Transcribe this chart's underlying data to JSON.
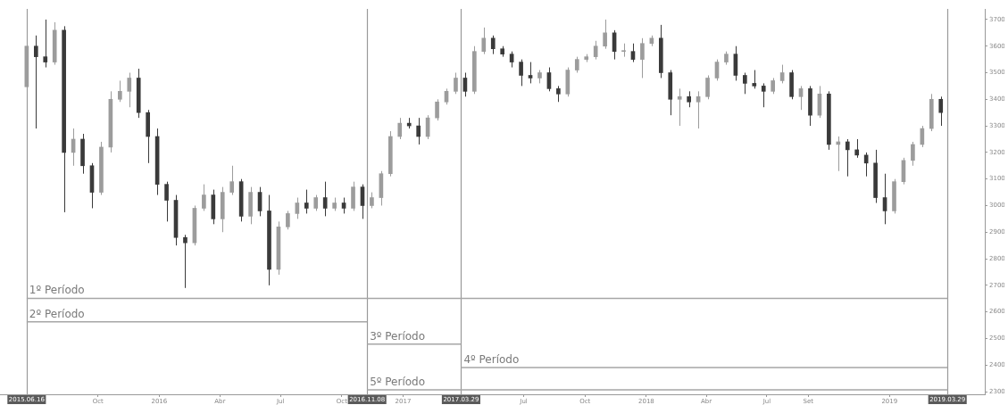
{
  "chart_data": {
    "type": "candlestick",
    "x": [
      "2015-06-16",
      "2015-06-30",
      "2015-07-14",
      "2015-07-28",
      "2015-08-11",
      "2015-08-25",
      "2015-09-08",
      "2015-09-22",
      "2015-10-06",
      "2015-10-20",
      "2015-11-03",
      "2015-11-17",
      "2015-12-01",
      "2015-12-15",
      "2015-12-29",
      "2016-01-12",
      "2016-01-26",
      "2016-02-09",
      "2016-02-23",
      "2016-03-08",
      "2016-03-22",
      "2016-04-05",
      "2016-04-19",
      "2016-05-03",
      "2016-05-17",
      "2016-05-31",
      "2016-06-14",
      "2016-06-28",
      "2016-07-12",
      "2016-07-26",
      "2016-08-09",
      "2016-08-23",
      "2016-09-06",
      "2016-09-20",
      "2016-10-04",
      "2016-10-18",
      "2016-11-01",
      "2016-11-15",
      "2016-11-29",
      "2016-12-13",
      "2016-12-27",
      "2017-01-10",
      "2017-01-24",
      "2017-02-07",
      "2017-02-21",
      "2017-03-07",
      "2017-03-21",
      "2017-04-04",
      "2017-04-18",
      "2017-05-02",
      "2017-05-16",
      "2017-05-30",
      "2017-06-13",
      "2017-06-27",
      "2017-07-11",
      "2017-07-25",
      "2017-08-08",
      "2017-08-22",
      "2017-09-05",
      "2017-09-19",
      "2017-10-03",
      "2017-10-17",
      "2017-10-31",
      "2017-11-14",
      "2017-11-28",
      "2017-12-12",
      "2017-12-26",
      "2018-01-09",
      "2018-01-23",
      "2018-02-06",
      "2018-02-20",
      "2018-03-06",
      "2018-03-20",
      "2018-04-03",
      "2018-04-17",
      "2018-05-01",
      "2018-05-15",
      "2018-05-29",
      "2018-06-12",
      "2018-06-26",
      "2018-07-10",
      "2018-07-24",
      "2018-08-07",
      "2018-08-21",
      "2018-09-04",
      "2018-09-18",
      "2018-10-02",
      "2018-10-16",
      "2018-10-30",
      "2018-11-13",
      "2018-11-27",
      "2018-12-11",
      "2018-12-25",
      "2019-01-08",
      "2019-01-22",
      "2019-02-05",
      "2019-02-19",
      "2019-03-05",
      "2019-03-19"
    ],
    "series": [
      {
        "colors": [
          "#9c9c9c",
          "#3a3a3a",
          "#3a3a3a",
          "#9c9c9c",
          "#3a3a3a",
          "#9c9c9c",
          "#3a3a3a",
          "#3a3a3a",
          "#9c9c9c",
          "#9c9c9c",
          "#9c9c9c",
          "#9c9c9c",
          "#3a3a3a",
          "#3a3a3a",
          "#3a3a3a",
          "#3a3a3a",
          "#3a3a3a",
          "#3a3a3a",
          "#9c9c9c",
          "#9c9c9c",
          "#3a3a3a",
          "#9c9c9c",
          "#9c9c9c",
          "#3a3a3a",
          "#9c9c9c",
          "#3a3a3a",
          "#3a3a3a",
          "#9c9c9c",
          "#9c9c9c",
          "#9c9c9c",
          "#3a3a3a",
          "#9c9c9c",
          "#3a3a3a",
          "#9c9c9c",
          "#3a3a3a",
          "#9c9c9c",
          "#3a3a3a",
          "#9c9c9c",
          "#9c9c9c",
          "#9c9c9c",
          "#9c9c9c",
          "#3a3a3a",
          "#3a3a3a",
          "#9c9c9c",
          "#9c9c9c",
          "#9c9c9c",
          "#9c9c9c",
          "#3a3a3a",
          "#9c9c9c",
          "#9c9c9c",
          "#3a3a3a",
          "#3a3a3a",
          "#3a3a3a",
          "#3a3a3a",
          "#3a3a3a",
          "#9c9c9c",
          "#3a3a3a",
          "#3a3a3a",
          "#9c9c9c",
          "#9c9c9c",
          "#9c9c9c",
          "#9c9c9c",
          "#9c9c9c",
          "#3a3a3a",
          "#9c9c9c",
          "#3a3a3a",
          "#9c9c9c",
          "#9c9c9c",
          "#3a3a3a",
          "#3a3a3a",
          "#9c9c9c",
          "#3a3a3a",
          "#9c9c9c",
          "#9c9c9c",
          "#9c9c9c",
          "#9c9c9c",
          "#3a3a3a",
          "#3a3a3a",
          "#3a3a3a",
          "#3a3a3a",
          "#9c9c9c",
          "#9c9c9c",
          "#3a3a3a",
          "#9c9c9c",
          "#3a3a3a",
          "#9c9c9c",
          "#3a3a3a",
          "#9c9c9c",
          "#3a3a3a",
          "#3a3a3a",
          "#3a3a3a",
          "#3a3a3a",
          "#3a3a3a",
          "#9c9c9c",
          "#9c9c9c",
          "#9c9c9c",
          "#9c9c9c",
          "#9c9c9c",
          "#3a3a3a"
        ],
        "ohlc": [
          [
            3447,
            3650,
            3420,
            3600
          ],
          [
            3600,
            3640,
            3290,
            3560
          ],
          [
            3560,
            3700,
            3520,
            3540
          ],
          [
            3540,
            3690,
            3530,
            3660
          ],
          [
            3660,
            3675,
            2975,
            3200
          ],
          [
            3200,
            3290,
            3150,
            3250
          ],
          [
            3250,
            3270,
            3120,
            3150
          ],
          [
            3150,
            3160,
            2990,
            3050
          ],
          [
            3050,
            3240,
            3040,
            3220
          ],
          [
            3220,
            3430,
            3200,
            3400
          ],
          [
            3400,
            3470,
            3390,
            3430
          ],
          [
            3430,
            3500,
            3370,
            3480
          ],
          [
            3480,
            3515,
            3330,
            3350
          ],
          [
            3350,
            3360,
            3160,
            3260
          ],
          [
            3260,
            3290,
            3040,
            3080
          ],
          [
            3080,
            3090,
            2940,
            3020
          ],
          [
            3020,
            3040,
            2850,
            2880
          ],
          [
            2880,
            2890,
            2690,
            2860
          ],
          [
            2860,
            3000,
            2850,
            2990
          ],
          [
            2990,
            3080,
            2980,
            3040
          ],
          [
            3040,
            3060,
            2930,
            2950
          ],
          [
            2950,
            3070,
            2900,
            3050
          ],
          [
            3050,
            3150,
            3040,
            3090
          ],
          [
            3090,
            3100,
            2940,
            2960
          ],
          [
            2960,
            3070,
            2930,
            3050
          ],
          [
            3050,
            3070,
            2960,
            2980
          ],
          [
            2980,
            3040,
            2700,
            2760
          ],
          [
            2760,
            2940,
            2740,
            2920
          ],
          [
            2920,
            2980,
            2910,
            2970
          ],
          [
            2970,
            3030,
            2950,
            3010
          ],
          [
            3010,
            3060,
            2970,
            2990
          ],
          [
            2990,
            3040,
            2980,
            3030
          ],
          [
            3030,
            3090,
            2960,
            2990
          ],
          [
            2990,
            3030,
            2980,
            3010
          ],
          [
            3010,
            3030,
            2970,
            2990
          ],
          [
            2990,
            3090,
            2980,
            3070
          ],
          [
            3070,
            3080,
            2950,
            3000
          ],
          [
            3000,
            3050,
            2990,
            3030
          ],
          [
            3030,
            3130,
            3000,
            3120
          ],
          [
            3120,
            3280,
            3110,
            3260
          ],
          [
            3260,
            3330,
            3250,
            3310
          ],
          [
            3310,
            3330,
            3290,
            3300
          ],
          [
            3300,
            3330,
            3230,
            3260
          ],
          [
            3260,
            3340,
            3250,
            3330
          ],
          [
            3330,
            3400,
            3320,
            3390
          ],
          [
            3390,
            3440,
            3380,
            3430
          ],
          [
            3430,
            3500,
            3420,
            3480
          ],
          [
            3480,
            3500,
            3410,
            3430
          ],
          [
            3430,
            3600,
            3420,
            3580
          ],
          [
            3580,
            3670,
            3570,
            3630
          ],
          [
            3630,
            3640,
            3570,
            3590
          ],
          [
            3590,
            3600,
            3560,
            3570
          ],
          [
            3570,
            3580,
            3520,
            3540
          ],
          [
            3540,
            3550,
            3450,
            3490
          ],
          [
            3490,
            3540,
            3460,
            3480
          ],
          [
            3480,
            3510,
            3460,
            3500
          ],
          [
            3500,
            3520,
            3430,
            3440
          ],
          [
            3440,
            3450,
            3390,
            3420
          ],
          [
            3420,
            3520,
            3410,
            3510
          ],
          [
            3510,
            3560,
            3500,
            3550
          ],
          [
            3550,
            3570,
            3540,
            3560
          ],
          [
            3560,
            3620,
            3550,
            3600
          ],
          [
            3600,
            3700,
            3590,
            3650
          ],
          [
            3650,
            3660,
            3550,
            3580
          ],
          [
            3580,
            3610,
            3560,
            3580
          ],
          [
            3580,
            3610,
            3540,
            3550
          ],
          [
            3550,
            3630,
            3480,
            3610
          ],
          [
            3610,
            3640,
            3600,
            3630
          ],
          [
            3630,
            3680,
            3480,
            3500
          ],
          [
            3500,
            3510,
            3340,
            3400
          ],
          [
            3400,
            3440,
            3300,
            3410
          ],
          [
            3410,
            3430,
            3370,
            3390
          ],
          [
            3390,
            3430,
            3290,
            3410
          ],
          [
            3410,
            3490,
            3400,
            3480
          ],
          [
            3480,
            3550,
            3470,
            3540
          ],
          [
            3540,
            3580,
            3530,
            3570
          ],
          [
            3570,
            3600,
            3470,
            3490
          ],
          [
            3490,
            3500,
            3420,
            3460
          ],
          [
            3460,
            3510,
            3440,
            3450
          ],
          [
            3450,
            3460,
            3370,
            3430
          ],
          [
            3430,
            3480,
            3420,
            3470
          ],
          [
            3470,
            3530,
            3460,
            3500
          ],
          [
            3500,
            3510,
            3400,
            3410
          ],
          [
            3410,
            3450,
            3360,
            3440
          ],
          [
            3440,
            3450,
            3300,
            3340
          ],
          [
            3340,
            3450,
            3330,
            3420
          ],
          [
            3420,
            3430,
            3210,
            3230
          ],
          [
            3230,
            3260,
            3130,
            3240
          ],
          [
            3240,
            3250,
            3110,
            3210
          ],
          [
            3210,
            3250,
            3180,
            3190
          ],
          [
            3190,
            3200,
            3110,
            3160
          ],
          [
            3160,
            3210,
            3010,
            3030
          ],
          [
            3030,
            3120,
            2930,
            2980
          ],
          [
            2980,
            3100,
            2970,
            3090
          ],
          [
            3090,
            3180,
            3080,
            3170
          ],
          [
            3170,
            3240,
            3150,
            3230
          ],
          [
            3230,
            3300,
            3220,
            3290
          ],
          [
            3290,
            3420,
            3280,
            3400
          ],
          [
            3400,
            3410,
            3300,
            3350
          ]
        ]
      },
      {
        "type": "line",
        "name": "1º Período",
        "color": "#a6a6a6",
        "x": [
          "2015-06-16",
          "2019-03-29"
        ],
        "values": [
          2651,
          2651
        ]
      },
      {
        "type": "line",
        "name": "2º Período",
        "color": "#a6a6a6",
        "x": [
          "2015-06-16",
          "2016-11-08"
        ],
        "values": [
          2563,
          2563
        ]
      },
      {
        "type": "line",
        "name": "3º Período",
        "color": "#a6a6a6",
        "x": [
          "2016-11-08",
          "2017-03-29"
        ],
        "values": [
          2479,
          2479
        ]
      },
      {
        "type": "line",
        "name": "4º Período",
        "color": "#a6a6a6",
        "x": [
          "2017-03-29",
          "2019-03-29"
        ],
        "values": [
          2391,
          2391
        ]
      },
      {
        "type": "line",
        "name": "5º Período",
        "color": "#a6a6a6",
        "x": [
          "2016-11-08",
          "2019-03-29"
        ],
        "values": [
          2307,
          2307
        ]
      }
    ],
    "xlim": [
      "2015-05-07",
      "2019-05-24"
    ],
    "xticks": [
      {
        "value": "2015-10-01",
        "label": "Oct"
      },
      {
        "value": "2016-01-01",
        "label": "2016"
      },
      {
        "value": "2016-04-01",
        "label": "Abr"
      },
      {
        "value": "2016-07-01",
        "label": "Jul"
      },
      {
        "value": "2016-10-01",
        "label": "Oct"
      },
      {
        "value": "2017-01-01",
        "label": "2017"
      },
      {
        "value": "2017-07-01",
        "label": "Jul"
      },
      {
        "value": "2017-10-01",
        "label": "Oct"
      },
      {
        "value": "2018-01-01",
        "label": "2018"
      },
      {
        "value": "2018-04-01",
        "label": "Abr"
      },
      {
        "value": "2018-07-01",
        "label": "Jul"
      },
      {
        "value": "2018-09-01",
        "label": "Set"
      },
      {
        "value": "2019-01-01",
        "label": "2019"
      }
    ],
    "ylim": [
      2290,
      3740
    ],
    "yticks": [
      2300,
      2400,
      2500,
      2600,
      2700,
      2800,
      2900,
      3000,
      3100,
      3200,
      3300,
      3400,
      3500,
      3600,
      3700
    ],
    "ref_lines": [
      {
        "axis": "x",
        "value": "2015-06-16",
        "label": "2015.06.16",
        "color": "#9a9a9a"
      },
      {
        "axis": "x",
        "value": "2016-11-08",
        "label": "2016.11.08",
        "color": "#9a9a9a"
      },
      {
        "axis": "x",
        "value": "2017-03-29",
        "label": "2017.03.29",
        "color": "#9a9a9a"
      },
      {
        "axis": "x",
        "value": "2019-03-29",
        "label": "2019.03.29",
        "color": "#9a9a9a"
      }
    ],
    "marker": "none",
    "legend": false,
    "grid": false
  }
}
